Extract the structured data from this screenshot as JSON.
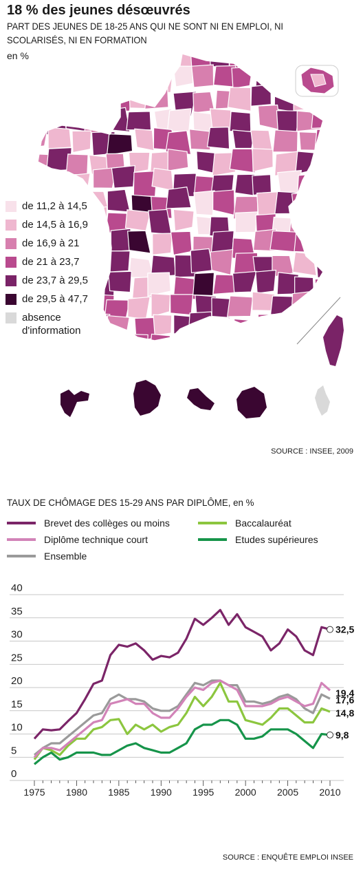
{
  "title": "18 % des jeunes désœuvrés",
  "subtitle": "PART DES JEUNES DE 18-25 ANS QUI NE SONT NI EN EMPLOI, NI SCOLARISÉS, NI EN FORMATION",
  "unit": "en %",
  "map_legend": [
    {
      "label": "de 11,2 à 14,5",
      "color": "#f8e1ea"
    },
    {
      "label": "de 14,5 à 16,9",
      "color": "#efb7cf"
    },
    {
      "label": "de 16,9 à 21",
      "color": "#d77fae"
    },
    {
      "label": "de 21 à 23,7",
      "color": "#b94a8e"
    },
    {
      "label": "de 23,7 à 29,5",
      "color": "#7a2367"
    },
    {
      "label": "de 29,5 à 47,7",
      "color": "#3a0631"
    },
    {
      "label": "absence d'information",
      "color": "#d9d9d9"
    }
  ],
  "source_map": "SOURCE : INSEE, 2009",
  "source_chart": "SOURCE : ENQUÊTE EMPLOI INSEE",
  "chart_data": {
    "type": "line",
    "title": "TAUX DE CHÔMAGE DES 15-29 ANS PAR DIPLÔME, en %",
    "xlabel": "",
    "ylabel": "",
    "ylim": [
      0,
      40
    ],
    "yticks": [
      0,
      5,
      10,
      15,
      20,
      25,
      30,
      35,
      40
    ],
    "xticks": [
      1975,
      1980,
      1985,
      1990,
      1995,
      2000,
      2005,
      2010
    ],
    "xlim": [
      1975,
      2010
    ],
    "grid": true,
    "x": [
      1975,
      1976,
      1977,
      1978,
      1979,
      1980,
      1981,
      1982,
      1983,
      1984,
      1985,
      1986,
      1987,
      1988,
      1989,
      1990,
      1991,
      1992,
      1993,
      1994,
      1995,
      1996,
      1997,
      1998,
      1999,
      2000,
      2001,
      2002,
      2003,
      2004,
      2005,
      2006,
      2007,
      2008,
      2009,
      2010
    ],
    "series": [
      {
        "name": "Brevet des collèges ou moins",
        "color": "#7b2568",
        "values": [
          9,
          11,
          10.8,
          11,
          12.8,
          14.5,
          17.5,
          20.8,
          21.5,
          27,
          29.2,
          28.8,
          29.5,
          28,
          26,
          26.8,
          26.5,
          27.5,
          30.5,
          34.8,
          33.5,
          35,
          36.7,
          33.5,
          35.8,
          33,
          32,
          31,
          28,
          29.5,
          32.5,
          31,
          28,
          27,
          33,
          32.5
        ],
        "end_label": "32,5"
      },
      {
        "name": "Diplôme technique court",
        "color": "#d283b8",
        "values": [
          5,
          7,
          7,
          6.5,
          8,
          9.5,
          11,
          12.5,
          13,
          16.5,
          17,
          17.5,
          16.5,
          16.5,
          14.5,
          13.5,
          13.5,
          15.5,
          18,
          20,
          19.5,
          21,
          21.5,
          20.5,
          19.5,
          16,
          16,
          16,
          16.5,
          17.5,
          18,
          17,
          16,
          16.5,
          21,
          19.4
        ],
        "end_label": "19,4"
      },
      {
        "name": "Ensemble",
        "color": "#9a9a9a",
        "values": [
          5.5,
          7,
          8,
          8,
          9.5,
          11,
          12.5,
          14,
          14.5,
          17.5,
          18.5,
          17.5,
          17.5,
          17,
          15.5,
          15,
          15,
          16,
          18.5,
          21,
          20.5,
          21.5,
          21.5,
          20.5,
          20.5,
          17,
          17,
          16.5,
          17,
          18,
          18.5,
          17.5,
          15.5,
          14.5,
          18.5,
          17.6
        ],
        "end_label": "17,6"
      },
      {
        "name": "Baccalauréat",
        "color": "#8cc63f",
        "values": [
          4.5,
          7,
          6.5,
          5.5,
          7.5,
          9,
          9,
          11,
          11.5,
          13,
          13.2,
          10,
          12,
          11,
          12,
          10.5,
          11.5,
          12,
          14.5,
          18,
          16,
          18,
          21,
          17,
          17,
          13,
          12.5,
          12,
          13.5,
          15.5,
          15.5,
          14,
          12.5,
          12.5,
          15.5,
          14.8
        ],
        "end_label": "14,8"
      },
      {
        "name": "Etudes supérieures",
        "color": "#16944a",
        "values": [
          3.5,
          5,
          6,
          4.5,
          5,
          6,
          6,
          6,
          5.5,
          5.5,
          6.5,
          7.5,
          8,
          7,
          6.5,
          6,
          6,
          7,
          8,
          11,
          12,
          12,
          13,
          13,
          12,
          9,
          9,
          9.5,
          11,
          11,
          11,
          10,
          8.5,
          7,
          10,
          9.8
        ],
        "end_label": "9,8"
      }
    ],
    "legend_position": "top",
    "legend_order": [
      "Brevet des collèges ou moins",
      "Baccalauréat",
      "Diplôme technique court",
      "Etudes supérieures",
      "Ensemble"
    ]
  }
}
